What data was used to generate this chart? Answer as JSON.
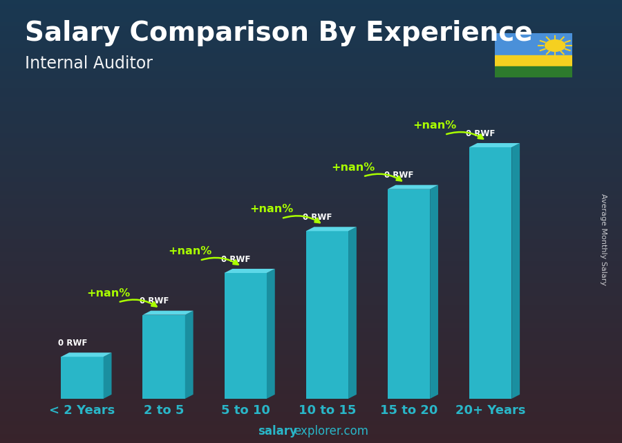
{
  "title": "Salary Comparison By Experience",
  "subtitle": "Internal Auditor",
  "categories": [
    "< 2 Years",
    "2 to 5",
    "5 to 10",
    "10 to 15",
    "15 to 20",
    "20+ Years"
  ],
  "values": [
    1,
    2,
    3,
    4,
    5,
    6
  ],
  "bar_color_front": "#29b6c8",
  "bar_color_top": "#5dd8e8",
  "bar_color_right": "#1a8fa0",
  "bar_color_left": "#1a9ab0",
  "bar_labels": [
    "0 RWF",
    "0 RWF",
    "0 RWF",
    "0 RWF",
    "0 RWF",
    "0 RWF"
  ],
  "increase_labels": [
    "+nan%",
    "+nan%",
    "+nan%",
    "+nan%",
    "+nan%"
  ],
  "ylabel_rotated": "Average Monthly Salary",
  "footer_bold": "salary",
  "footer_normal": "explorer.com",
  "title_fontsize": 28,
  "subtitle_fontsize": 17,
  "cat_fontsize": 13,
  "bar_label_color": "#ffffff",
  "increase_label_color": "#aaff00",
  "bg_color_top": "#1a3a52",
  "bg_color_bottom": "#2a1a0a",
  "flag_blue": "#4a90d9",
  "flag_yellow": "#f5d020",
  "flag_green": "#2d7a2d",
  "flag_sun": "#f5d020",
  "xlim_lo": -0.55,
  "xlim_hi": 5.85,
  "ylim_hi": 7.4
}
